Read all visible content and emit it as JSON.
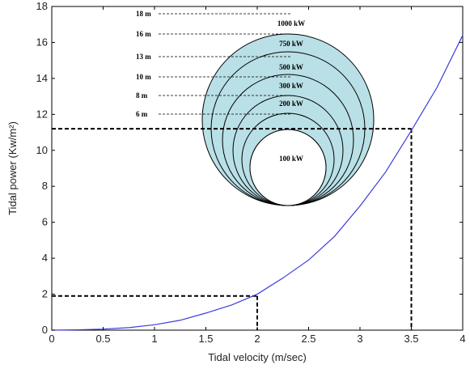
{
  "chart_data": {
    "type": "line",
    "xlabel": "Tidal velocity (m/sec)",
    "ylabel": "Tidal power (Kw/m²)",
    "xlim": [
      0,
      4
    ],
    "ylim": [
      0,
      18
    ],
    "x_ticks": [
      "0",
      "0.5",
      "1",
      "1.5",
      "2",
      "2.5",
      "3",
      "3.5",
      "4"
    ],
    "y_ticks": [
      "0",
      "2",
      "4",
      "6",
      "8",
      "10",
      "12",
      "14",
      "16",
      "18"
    ],
    "grid": false,
    "colors": {
      "line": "#3b3bdd",
      "disc_fill": "#b9e0e6",
      "dash": "#000000"
    },
    "series": [
      {
        "x": [
          0,
          0.25,
          0.5,
          0.75,
          1.0,
          1.25,
          1.5,
          1.75,
          2.0,
          2.25,
          2.5,
          2.75,
          3.0,
          3.25,
          3.5,
          3.75,
          4.0
        ],
        "y": [
          0,
          0.02,
          0.06,
          0.14,
          0.3,
          0.55,
          0.95,
          1.4,
          2.0,
          2.9,
          3.9,
          5.2,
          6.9,
          8.8,
          11.1,
          13.5,
          16.4
        ]
      }
    ],
    "reference_points": [
      {
        "x": 2.0,
        "y": 1.9
      },
      {
        "x": 3.5,
        "y": 11.2
      }
    ],
    "annotations": {
      "diameters": [
        "18 m",
        "16 m",
        "13 m",
        "10 m",
        "8 m",
        "6 m"
      ],
      "powers": [
        "1000 kW",
        "750 kW",
        "500 kW",
        "300 kW",
        "200 kW",
        "100 kW"
      ]
    }
  }
}
